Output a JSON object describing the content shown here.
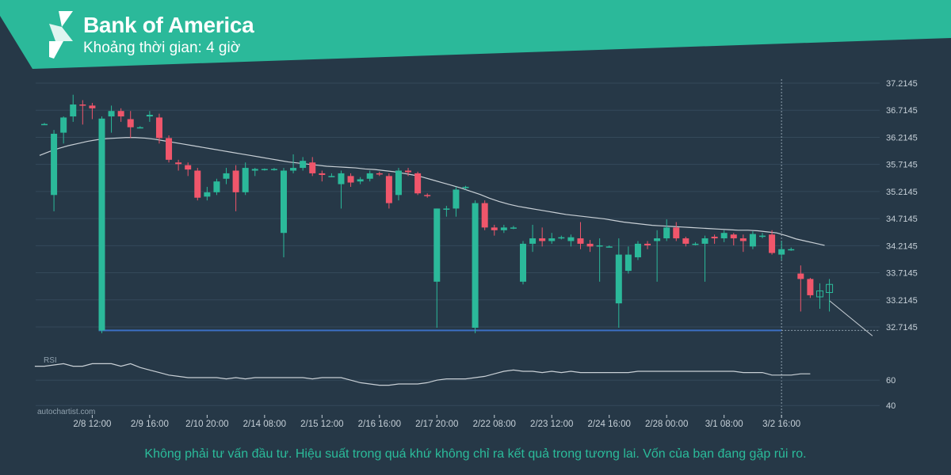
{
  "header": {
    "title": "Bank of America",
    "subtitle": "Khoảng thời gian: 4 giờ",
    "logo": "autochartist-logo-icon",
    "bg_color": "#2bb99a"
  },
  "watermark": "autochartist.com",
  "disclaimer": "Không phải tư vấn đầu tư. Hiệu suất trong quá khứ không chỉ ra kết quả trong tương lai. Vốn của bạn đang gặp rủi ro.",
  "colors": {
    "background": "#263847",
    "up": "#2bb99a",
    "down": "#f0566b",
    "ma": "#c9d0d6",
    "support": "#3b6fc4",
    "rsi": "#c9d0d6",
    "grid": "#34495a",
    "axis_text": "#c6d0d8"
  },
  "chart_data": [
    {
      "type": "candlestick",
      "title": "",
      "interval": "4h",
      "xlabel": "",
      "ylabel": "",
      "ylim": [
        32.5,
        37.3
      ],
      "y_ticks": [
        "37.2145",
        "36.7145",
        "36.2145",
        "35.7145",
        "35.2145",
        "34.7145",
        "34.2145",
        "33.7145",
        "33.2145",
        "32.7145"
      ],
      "x_ticks": [
        {
          "label": "2/8 12:00",
          "index": 5
        },
        {
          "label": "2/9 16:00",
          "index": 11
        },
        {
          "label": "2/10 20:00",
          "index": 17
        },
        {
          "label": "2/14 08:00",
          "index": 23
        },
        {
          "label": "2/15 12:00",
          "index": 29
        },
        {
          "label": "2/16 16:00",
          "index": 35
        },
        {
          "label": "2/17 20:00",
          "index": 41
        },
        {
          "label": "2/22 08:00",
          "index": 47
        },
        {
          "label": "2/23 12:00",
          "index": 53
        },
        {
          "label": "2/24 16:00",
          "index": 59
        },
        {
          "label": "2/28 00:00",
          "index": 65
        },
        {
          "label": "3/1 08:00",
          "index": 71
        },
        {
          "label": "3/2 16:00",
          "index": 77
        }
      ],
      "candles": [
        [
          36.46,
          36.48,
          36.45,
          36.46
        ],
        [
          35.15,
          36.35,
          34.85,
          36.28
        ],
        [
          36.3,
          36.6,
          36.1,
          36.58
        ],
        [
          36.6,
          37.0,
          36.5,
          36.82
        ],
        [
          36.82,
          36.9,
          36.45,
          36.8
        ],
        [
          36.8,
          36.85,
          36.55,
          36.75
        ],
        [
          32.65,
          36.6,
          32.6,
          36.56
        ],
        [
          36.6,
          36.8,
          36.3,
          36.7
        ],
        [
          36.7,
          36.75,
          36.5,
          36.6
        ],
        [
          36.55,
          36.7,
          36.2,
          36.4
        ],
        [
          36.4,
          36.42,
          36.38,
          36.4
        ],
        [
          36.6,
          36.7,
          36.5,
          36.63
        ],
        [
          36.58,
          36.65,
          36.1,
          36.2
        ],
        [
          36.2,
          36.25,
          35.75,
          35.8
        ],
        [
          35.75,
          35.8,
          35.6,
          35.72
        ],
        [
          35.7,
          35.75,
          35.5,
          35.62
        ],
        [
          35.6,
          35.65,
          35.05,
          35.1
        ],
        [
          35.12,
          35.3,
          35.05,
          35.2
        ],
        [
          35.2,
          35.45,
          35.15,
          35.4
        ],
        [
          35.45,
          35.65,
          35.35,
          35.55
        ],
        [
          35.6,
          35.7,
          34.85,
          35.2
        ],
        [
          35.2,
          35.75,
          35.15,
          35.65
        ],
        [
          35.6,
          35.65,
          35.5,
          35.63
        ],
        [
          35.62,
          35.64,
          35.6,
          35.63
        ],
        [
          35.63,
          35.65,
          35.6,
          35.63
        ],
        [
          34.45,
          35.65,
          34.0,
          35.6
        ],
        [
          35.6,
          35.9,
          35.55,
          35.65
        ],
        [
          35.65,
          35.85,
          35.6,
          35.78
        ],
        [
          35.75,
          35.85,
          35.5,
          35.55
        ],
        [
          35.55,
          35.6,
          35.4,
          35.52
        ],
        [
          35.5,
          35.55,
          35.48,
          35.5
        ],
        [
          35.35,
          35.6,
          34.9,
          35.55
        ],
        [
          35.5,
          35.55,
          35.3,
          35.38
        ],
        [
          35.4,
          35.48,
          35.35,
          35.44
        ],
        [
          35.45,
          35.6,
          35.4,
          35.55
        ],
        [
          35.55,
          35.58,
          35.5,
          35.53
        ],
        [
          35.5,
          35.55,
          34.9,
          35.0
        ],
        [
          35.15,
          35.65,
          35.05,
          35.6
        ],
        [
          35.6,
          35.65,
          35.5,
          35.57
        ],
        [
          35.55,
          35.58,
          35.15,
          35.18
        ],
        [
          35.15,
          35.18,
          35.1,
          35.13
        ],
        [
          33.55,
          34.9,
          32.7,
          34.9
        ],
        [
          34.9,
          34.95,
          34.75,
          34.9
        ],
        [
          34.9,
          35.3,
          34.75,
          35.25
        ],
        [
          35.28,
          35.32,
          35.25,
          35.3
        ],
        [
          32.7,
          35.05,
          32.6,
          35.0
        ],
        [
          35.0,
          35.05,
          34.5,
          34.55
        ],
        [
          34.55,
          34.6,
          34.4,
          34.5
        ],
        [
          34.5,
          34.6,
          34.45,
          34.55
        ],
        [
          34.55,
          34.58,
          34.52,
          34.55
        ],
        [
          33.55,
          34.3,
          33.5,
          34.25
        ],
        [
          34.25,
          34.6,
          34.1,
          34.35
        ],
        [
          34.35,
          34.55,
          34.2,
          34.3
        ],
        [
          34.3,
          34.45,
          34.25,
          34.35
        ],
        [
          34.37,
          34.4,
          34.33,
          34.37
        ],
        [
          34.3,
          34.42,
          34.2,
          34.37
        ],
        [
          34.35,
          34.65,
          34.15,
          34.25
        ],
        [
          34.25,
          34.32,
          34.1,
          34.2
        ],
        [
          34.2,
          34.35,
          33.55,
          34.22
        ],
        [
          34.2,
          34.22,
          34.18,
          34.2
        ],
        [
          33.15,
          34.35,
          32.7,
          34.05
        ],
        [
          33.75,
          34.2,
          33.7,
          34.05
        ],
        [
          34.0,
          34.3,
          33.95,
          34.25
        ],
        [
          34.25,
          34.3,
          34.15,
          34.22
        ],
        [
          34.3,
          34.5,
          33.55,
          34.35
        ],
        [
          34.35,
          34.7,
          34.3,
          34.55
        ],
        [
          34.55,
          34.65,
          34.3,
          34.35
        ],
        [
          34.35,
          34.38,
          34.2,
          34.25
        ],
        [
          34.25,
          34.28,
          34.22,
          34.25
        ],
        [
          34.25,
          34.4,
          33.55,
          34.35
        ],
        [
          34.38,
          34.42,
          34.25,
          34.35
        ],
        [
          34.35,
          34.5,
          34.28,
          34.45
        ],
        [
          34.42,
          34.45,
          34.22,
          34.35
        ],
        [
          34.35,
          34.42,
          34.1,
          34.3
        ],
        [
          34.2,
          34.48,
          34.15,
          34.43
        ],
        [
          34.4,
          34.45,
          34.35,
          34.4
        ],
        [
          34.42,
          34.5,
          34.05,
          34.08
        ],
        [
          34.05,
          34.3,
          33.95,
          34.15
        ],
        [
          34.15,
          34.18,
          34.12,
          34.15
        ],
        [
          33.7,
          33.85,
          33.0,
          33.6
        ],
        [
          33.6,
          33.62,
          33.25,
          33.3
        ],
        [
          33.27,
          33.52,
          33.05,
          33.38
        ],
        [
          33.35,
          33.6,
          33.0,
          33.5
        ]
      ],
      "moving_average": [
        35.88,
        35.95,
        36.01,
        36.06,
        36.1,
        36.14,
        36.17,
        36.19,
        36.2,
        36.21,
        36.21,
        36.2,
        36.18,
        36.15,
        36.12,
        36.09,
        36.06,
        36.03,
        36.0,
        35.97,
        35.94,
        35.91,
        35.88,
        35.85,
        35.82,
        35.79,
        35.76,
        35.74,
        35.72,
        35.7,
        35.68,
        35.67,
        35.66,
        35.65,
        35.63,
        35.62,
        35.6,
        35.58,
        35.55,
        35.52,
        35.48,
        35.43,
        35.38,
        35.33,
        35.28,
        35.22,
        35.16,
        35.09,
        35.03,
        34.98,
        34.94,
        34.91,
        34.88,
        34.85,
        34.82,
        34.79,
        34.77,
        34.75,
        34.73,
        34.71,
        34.68,
        34.65,
        34.63,
        34.61,
        34.59,
        34.58,
        34.57,
        34.56,
        34.55,
        34.54,
        34.53,
        34.52,
        34.51,
        34.5,
        34.5,
        34.49,
        34.47,
        34.45,
        34.4,
        34.34,
        34.3,
        34.26,
        34.22
      ],
      "support_level": 32.65,
      "support_range": [
        6,
        77
      ],
      "projection": {
        "from_index": 82,
        "from_value": 33.2,
        "to_index": 86.5,
        "to_value": 32.55
      },
      "marker_index": 77
    },
    {
      "type": "line",
      "title": "RSI",
      "ylim": [
        32,
        82
      ],
      "y_ticks": [
        "60",
        "40"
      ],
      "values": [
        71,
        71,
        72,
        73,
        71,
        71,
        73,
        73,
        73,
        71,
        73,
        70,
        68,
        66,
        64,
        63,
        62,
        62,
        62,
        62,
        61,
        62,
        61,
        62,
        62,
        62,
        62,
        62,
        62,
        61,
        62,
        62,
        62,
        60,
        58,
        57,
        56,
        56,
        57,
        57,
        57,
        58,
        60,
        61,
        61,
        61,
        62,
        63,
        65,
        67,
        68,
        67,
        67,
        66,
        67,
        66,
        67,
        66,
        66,
        66,
        66,
        66,
        66,
        67,
        67,
        67,
        67,
        67,
        67,
        67,
        67,
        67,
        67,
        67,
        66,
        66,
        66,
        64,
        64,
        64,
        65,
        65
      ]
    }
  ]
}
